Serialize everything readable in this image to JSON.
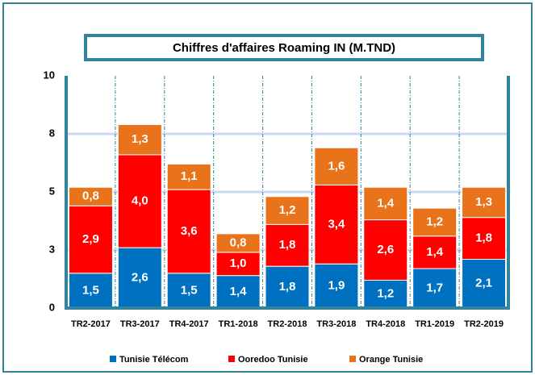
{
  "chart_data": {
    "type": "stacked_bar",
    "title": "Chiffres d'affaires Roaming IN (M.TND)",
    "categories": [
      "TR2-2017",
      "TR3-2017",
      "TR4-2017",
      "TR1-2018",
      "TR2-2018",
      "TR3-2018",
      "TR4-2018",
      "TR1-2019",
      "TR2-2019"
    ],
    "series": [
      {
        "name": "Tunisie Télécom",
        "color": "#0070c0",
        "values": [
          1.5,
          2.6,
          1.5,
          1.4,
          1.8,
          1.9,
          1.2,
          1.7,
          2.1
        ],
        "value_labels": [
          "1,5",
          "2,6",
          "1,5",
          "1,4",
          "1,8",
          "1,9",
          "1,2",
          "1,7",
          "2,1"
        ]
      },
      {
        "name": "Ooredoo Tunisie",
        "color": "#ff0000",
        "values": [
          2.9,
          4.0,
          3.6,
          1.0,
          1.8,
          3.4,
          2.6,
          1.4,
          1.8
        ],
        "value_labels": [
          "2,9",
          "4,0",
          "3,6",
          "1,0",
          "1,8",
          "3,4",
          "2,6",
          "1,4",
          "1,8"
        ]
      },
      {
        "name": "Orange Tunisie",
        "color": "#e8731a",
        "values": [
          0.8,
          1.3,
          1.1,
          0.8,
          1.2,
          1.6,
          1.4,
          1.2,
          1.3
        ],
        "value_labels": [
          "0,8",
          "1,3",
          "1,1",
          "0,8",
          "1,2",
          "1,6",
          "1,4",
          "1,2",
          "1,3"
        ]
      }
    ],
    "ylim": [
      0,
      10
    ],
    "yticks": [
      0,
      {
        "value": 2.5,
        "label": "3"
      },
      5,
      {
        "value": 7.5,
        "label": "8"
      },
      10
    ],
    "grid": true,
    "legend": "bottom"
  }
}
